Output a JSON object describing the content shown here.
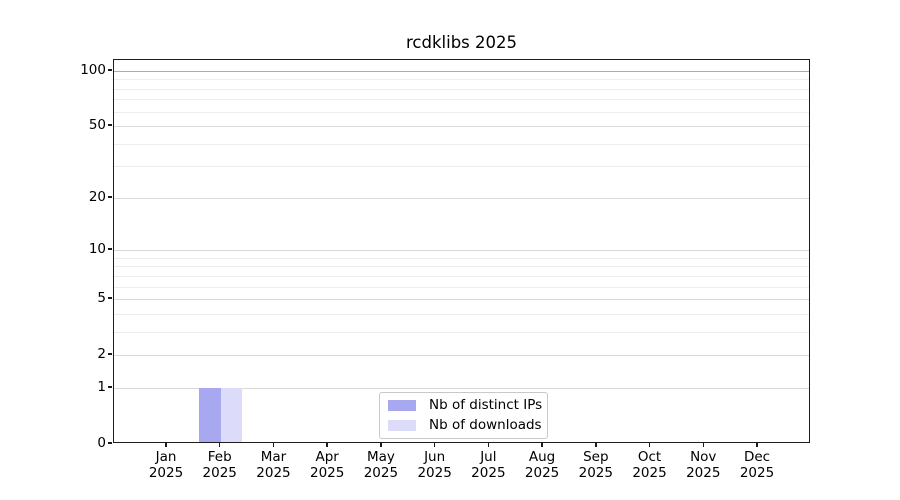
{
  "chart_data": {
    "type": "bar",
    "title": "rcdklibs 2025",
    "categories": [
      "Jan",
      "Feb",
      "Mar",
      "Apr",
      "May",
      "Jun",
      "Jul",
      "Aug",
      "Sep",
      "Oct",
      "Nov",
      "Dec"
    ],
    "x_sub_label": "2025",
    "series": [
      {
        "name": "Nb of distinct IPs",
        "color": "#a8a8f0",
        "values": [
          0,
          1,
          0,
          0,
          0,
          0,
          0,
          0,
          0,
          0,
          0,
          0
        ]
      },
      {
        "name": "Nb of downloads",
        "color": "#dcdcfa",
        "values": [
          0,
          1,
          0,
          0,
          0,
          0,
          0,
          0,
          0,
          0,
          0,
          0
        ]
      }
    ],
    "yaxis": {
      "scale": "log1p",
      "ticks": [
        0,
        1,
        2,
        5,
        10,
        20,
        50,
        100
      ],
      "minor_gridlines": [
        3,
        4,
        6,
        7,
        8,
        9,
        30,
        40,
        60,
        70,
        80,
        90
      ],
      "ylim": [
        0,
        115
      ],
      "grid": true
    },
    "legend": {
      "position": "lower center"
    }
  }
}
